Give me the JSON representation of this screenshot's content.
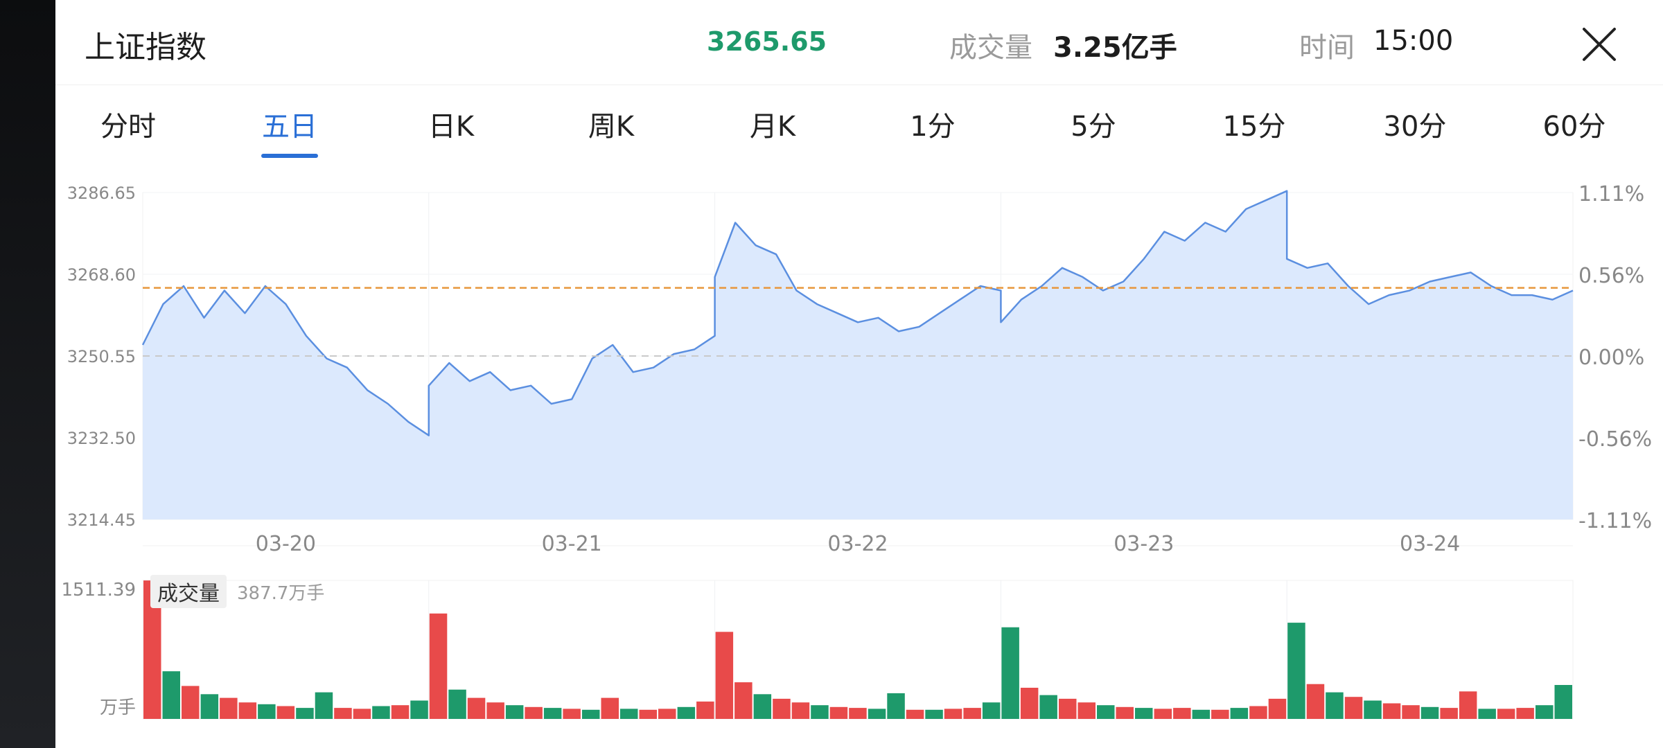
{
  "header": {
    "title": "上证指数",
    "price": "3265.65",
    "volume_label": "成交量",
    "volume_value": "3.25亿手",
    "time_label": "时间",
    "time_value": "15:00"
  },
  "tabs": [
    {
      "label": "分时",
      "active": false
    },
    {
      "label": "五日",
      "active": true
    },
    {
      "label": "日K",
      "active": false
    },
    {
      "label": "周K",
      "active": false
    },
    {
      "label": "月K",
      "active": false
    },
    {
      "label": "1分",
      "active": false
    },
    {
      "label": "5分",
      "active": false
    },
    {
      "label": "15分",
      "active": false
    },
    {
      "label": "30分",
      "active": false
    },
    {
      "label": "60分",
      "active": false
    }
  ],
  "colors": {
    "accent": "#2a6fd6",
    "price_up": "#e84a4a",
    "price_down": "#1e9a6b",
    "line": "#5b8fe0",
    "area": "#dce9fd",
    "avg_line": "#e8963b"
  },
  "chart_data": [
    {
      "type": "line",
      "name": "price",
      "y_left_ticks": [
        "3286.65",
        "3268.60",
        "3250.55",
        "3232.50",
        "3214.45"
      ],
      "y_right_ticks": [
        "1.11%",
        "0.56%",
        "0.00%",
        "-0.56%",
        "-1.11%"
      ],
      "ylim": [
        3214.45,
        3286.65
      ],
      "prev_close": 3250.55,
      "avg_level": 3265.6,
      "x_categories": [
        "03-20",
        "03-21",
        "03-22",
        "03-23",
        "03-24"
      ],
      "days": [
        {
          "date": "03-20",
          "values": [
            3253,
            3262,
            3266,
            3259,
            3265,
            3260,
            3266,
            3262,
            3255,
            3250,
            3248,
            3243,
            3240,
            3236,
            3233
          ]
        },
        {
          "date": "03-21",
          "values": [
            3244,
            3249,
            3245,
            3247,
            3243,
            3244,
            3240,
            3241,
            3250,
            3253,
            3247,
            3248,
            3251,
            3252,
            3255
          ]
        },
        {
          "date": "03-22",
          "values": [
            3268,
            3280,
            3275,
            3273,
            3265,
            3262,
            3260,
            3258,
            3259,
            3256,
            3257,
            3260,
            3263,
            3266,
            3265
          ]
        },
        {
          "date": "03-23",
          "values": [
            3258,
            3263,
            3266,
            3270,
            3268,
            3265,
            3267,
            3272,
            3278,
            3276,
            3280,
            3278,
            3283,
            3285,
            3287
          ]
        },
        {
          "date": "03-24",
          "values": [
            3272,
            3270,
            3271,
            3266,
            3262,
            3264,
            3265,
            3267,
            3268,
            3269,
            3266,
            3264,
            3264,
            3263,
            3265
          ]
        }
      ]
    },
    {
      "type": "bar",
      "name": "volume",
      "label": "成交量",
      "sub_label": "387.7万手",
      "y_max_label": "1511.39",
      "y_unit": "万手",
      "ymax": 1511.39,
      "days": [
        {
          "date": "03-20",
          "values": [
            1511,
            520,
            360,
            270,
            230,
            180,
            160,
            140,
            120,
            290,
            120,
            110,
            140,
            150,
            200
          ]
        },
        {
          "date": "03-21",
          "values": [
            1150,
            320,
            230,
            180,
            150,
            130,
            120,
            110,
            100,
            230,
            110,
            100,
            110,
            130,
            190
          ]
        },
        {
          "date": "03-22",
          "values": [
            950,
            400,
            270,
            220,
            180,
            150,
            130,
            120,
            110,
            280,
            100,
            100,
            110,
            120,
            180
          ]
        },
        {
          "date": "03-23",
          "values": [
            1000,
            340,
            260,
            220,
            180,
            150,
            130,
            120,
            110,
            120,
            100,
            100,
            120,
            140,
            220
          ]
        },
        {
          "date": "03-24",
          "values": [
            1050,
            380,
            290,
            240,
            200,
            170,
            150,
            130,
            120,
            300,
            110,
            110,
            120,
            150,
            370
          ]
        }
      ],
      "colors_by_day": [
        [
          "up",
          "down",
          "up",
          "down",
          "up",
          "up",
          "down",
          "up",
          "down",
          "down",
          "up",
          "up",
          "down",
          "up",
          "down"
        ],
        [
          "up",
          "down",
          "up",
          "up",
          "down",
          "up",
          "down",
          "up",
          "down",
          "up",
          "down",
          "up",
          "up",
          "down",
          "up"
        ],
        [
          "up",
          "up",
          "down",
          "up",
          "up",
          "down",
          "up",
          "up",
          "down",
          "down",
          "up",
          "down",
          "up",
          "up",
          "down"
        ],
        [
          "down",
          "up",
          "down",
          "up",
          "up",
          "down",
          "up",
          "down",
          "up",
          "up",
          "down",
          "up",
          "down",
          "up",
          "up"
        ],
        [
          "down",
          "up",
          "down",
          "up",
          "down",
          "up",
          "up",
          "down",
          "up",
          "up",
          "down",
          "up",
          "up",
          "down",
          "down"
        ]
      ]
    }
  ]
}
